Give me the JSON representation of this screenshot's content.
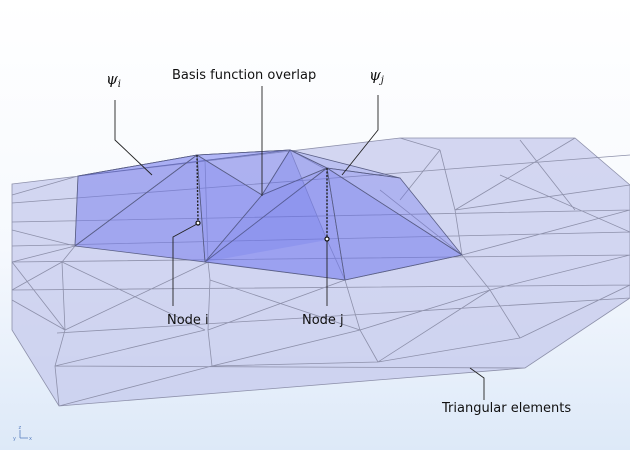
{
  "labels": {
    "psi_i": {
      "symbol": "ψ",
      "subscript": "i"
    },
    "psi_j": {
      "symbol": "ψ",
      "subscript": "j"
    },
    "overlap": "Basis function overlap",
    "node_i": "Node i",
    "node_j": "Node j",
    "elements": "Triangular elements"
  },
  "axis_triad": {
    "z": "z",
    "y": "y",
    "x": "x"
  },
  "colors": {
    "background_top": "#ffffff",
    "background_bottom": "#dde9f8",
    "mesh_fill": "#c6c9ec",
    "mesh_edge": "#8d90aa",
    "pyramid_fill": "#6f76ee",
    "pyramid_edge": "#5a5f86",
    "leader_line": "#222222",
    "axis": "#5a7fbf"
  }
}
